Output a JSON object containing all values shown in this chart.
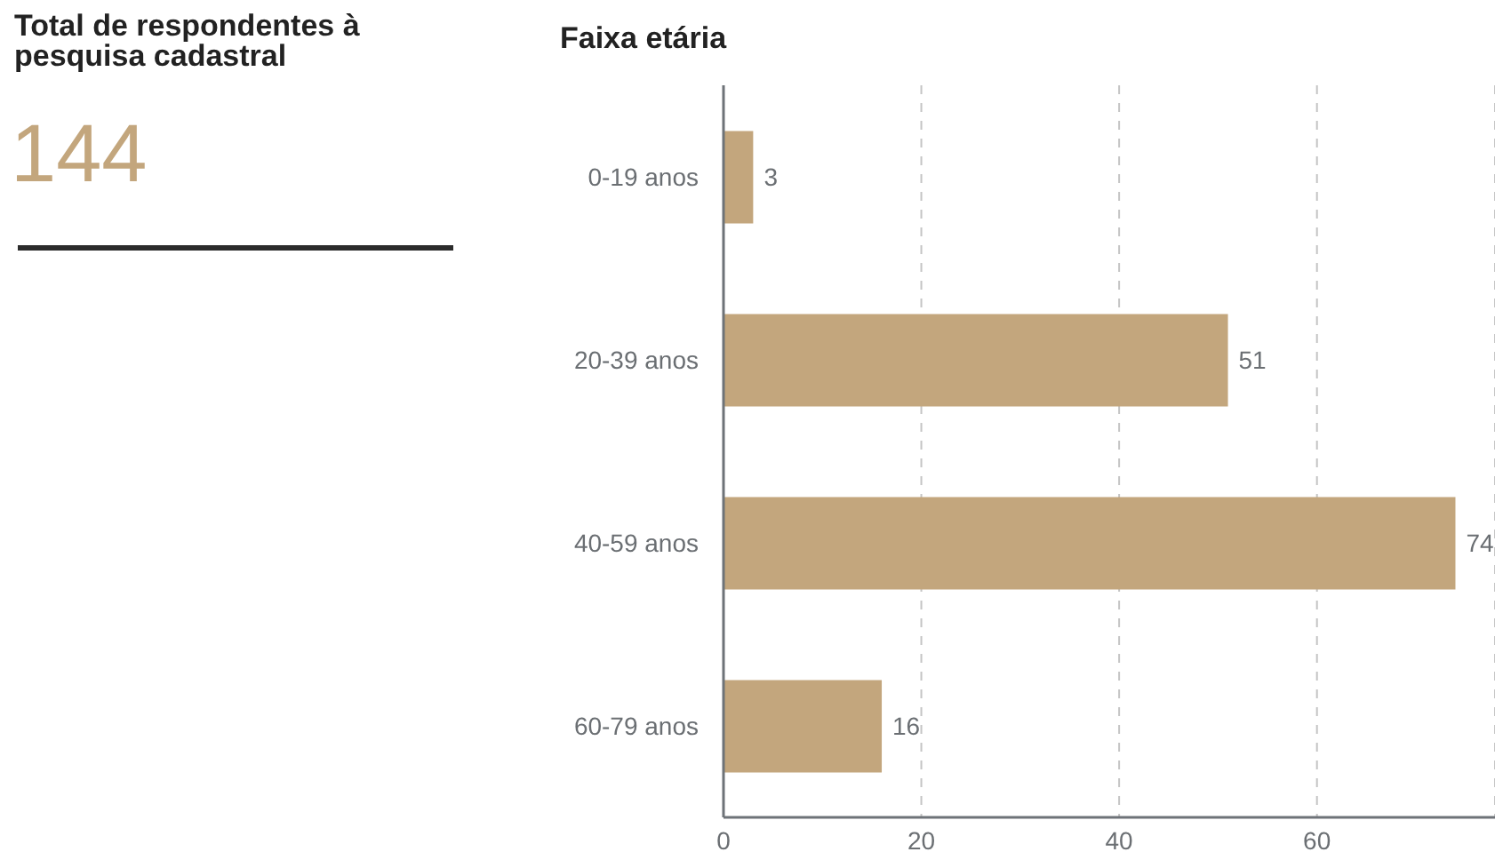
{
  "chart_data": [
    {
      "type": "other",
      "title": "Total de respondentes à pesquisa cadastral",
      "annotations": [
        "144"
      ]
    },
    {
      "type": "bar",
      "title": "Faixa etária",
      "orientation": "horizontal",
      "categories": [
        "0-19 anos",
        "20-39 anos",
        "40-59 anos",
        "60-79 anos"
      ],
      "values": [
        3,
        51,
        74,
        16
      ],
      "color": "#c3a67d",
      "xlim": [
        0,
        78
      ],
      "xticks": [
        0,
        20,
        40,
        60
      ],
      "grid": "x",
      "data_labels": true
    }
  ]
}
